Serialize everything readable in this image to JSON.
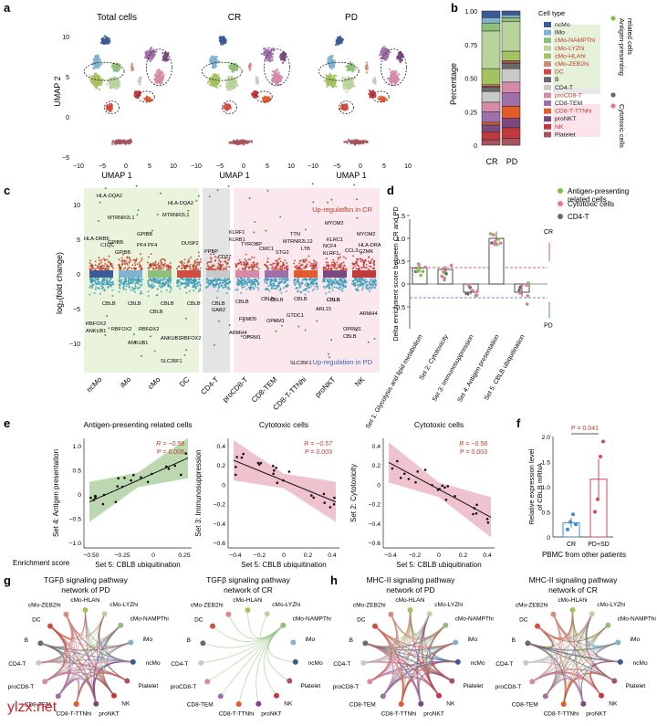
{
  "panels": {
    "a": {
      "letter": "a",
      "titles": [
        "Total cells",
        "CR",
        "PD"
      ],
      "xlabel": "UMAP 1",
      "ylabel": "UMAP 2",
      "xticks": [
        "−10",
        "−5",
        "0",
        "5",
        "10"
      ],
      "yticks": [
        "10",
        "5",
        "0",
        "−5"
      ]
    },
    "b": {
      "letter": "b",
      "ylabel": "Percentage",
      "yticks": [
        "1.00",
        "0.75",
        "0.50",
        "0.25",
        "0"
      ],
      "xcats": [
        "CR",
        "PD"
      ],
      "legend_title": "Cell type",
      "legend": [
        {
          "label": "ncMo",
          "color": "#3d5a97"
        },
        {
          "label": "iMo",
          "color": "#7fb2cf"
        },
        {
          "label": "cMo-NAMPThi",
          "color": "#8fbf7a"
        },
        {
          "label": "cMo-LYZhi",
          "color": "#b8d49c"
        },
        {
          "label": "cMo-HLAhi",
          "color": "#a4c25f"
        },
        {
          "label": "cMo-ZEB2hi",
          "color": "#d98a7e"
        },
        {
          "label": "DC",
          "color": "#cf4d42"
        },
        {
          "label": "B",
          "color": "#6a6a6a"
        },
        {
          "label": "CD4-T",
          "color": "#c9c9c9"
        },
        {
          "label": "proCD8-T",
          "color": "#d58ba7"
        },
        {
          "label": "CD8-TEM",
          "color": "#9e6fa8"
        },
        {
          "label": "CD8-T-TTNhi",
          "color": "#e25b2a"
        },
        {
          "label": "proNKT",
          "color": "#7a4a7f"
        },
        {
          "label": "NK",
          "color": "#c0393d"
        },
        {
          "label": "Platelet",
          "color": "#a8525c"
        }
      ],
      "side_labels": [
        "Antigen-presenting related cells",
        "Cytotoxic cells"
      ]
    },
    "c": {
      "letter": "c",
      "ylabel": "log₂(fold change)",
      "yticks": [
        "10",
        "5",
        "0",
        "−5",
        "−10"
      ],
      "up_label": "Up-regulation in CR",
      "down_label": "Up-regulation in PD",
      "categories": [
        "ncMo",
        "iMo",
        "cMo",
        "DC",
        "CD4-T",
        "proCD8-T",
        "CD8-TEM",
        "CD8-T-TTNhi",
        "proNKT",
        "NK"
      ],
      "genes_up": [
        "HLA-DQA2",
        "HLA-DQA2",
        "MTRNR2L1",
        "MTRNR2L1",
        "HLA-DRB5",
        "C1QC",
        "GPIBB",
        "GPIBB",
        "PF4",
        "GPIBB",
        "PF4",
        "DUSP2",
        "PPBP",
        "CD27",
        "KLRF1",
        "KLRB1",
        "TYROBP",
        "CMC1",
        "TTN",
        "MTRNR2L12",
        "STG2",
        "LTB",
        "MYOM2",
        "KLRC1",
        "NCF4",
        "KLRF1",
        "HLA-DRA",
        "GZMK",
        "CCL3",
        "MYOM2"
      ],
      "genes_down": [
        "CBLB",
        "CBLB",
        "CBLB",
        "CBLB",
        "CBLB",
        "RBFOX2",
        "ANKUB1",
        "RBFOX2",
        "ANKUB1",
        "CBLB",
        "ANKUB1",
        "RBFOX2",
        "RBFOX2",
        "SLC35F1",
        "CBLB",
        "GAB2",
        "CBLB",
        "FRMD5",
        "ARMH4",
        "OPRM1",
        "CBLB",
        "OPRM1",
        "GTDC1",
        "CBLB",
        "ARL15",
        "CBLB",
        "SLC35F1",
        "OPRM1",
        "CBLB",
        "CBLB",
        "ARMH4"
      ]
    },
    "d": {
      "letter": "d",
      "ylabel": "Delta enrichment score between CR and PD",
      "yticks": [
        "1.5",
        "1.0",
        "0.5",
        "0",
        "−0.5"
      ],
      "legend": [
        {
          "label": "Antigen-presenting related cells",
          "color": "#7cc04a"
        },
        {
          "label": "Cytotoxic cells",
          "color": "#e6769d"
        },
        {
          "label": "CD4-T",
          "color": "#6a6a6a"
        }
      ],
      "sets": [
        "Set 1: Glycolysis and lipid metabolism",
        "Set 2: Cytotoxicity",
        "Set 3: Immunosuppression",
        "Set 4: Antigen presentation",
        "Set 5: CBLB ubiquitination"
      ],
      "cr": "CR",
      "pd": "PD"
    },
    "e": {
      "letter": "e",
      "row_label": "Enrichment score",
      "plots": [
        {
          "title": "Antigen-presenting related cells",
          "ylabel": "Set 4: Antigen presentation",
          "xlabel": "Set 5: CBLB ubiquitination",
          "r": "R = −0.59",
          "p": "P = 0.006",
          "xticks": [
            "−0.50",
            "−0.25",
            "0",
            "0.25"
          ],
          "yticks": [
            "1.0",
            "0.5",
            "0",
            "−0.5",
            "−1.0"
          ]
        },
        {
          "title": "Cytotoxic cells",
          "ylabel": "Set 3: Immunosuppression",
          "xlabel": "Set 5: CBLB ubiquitination",
          "r": "R = −0.57",
          "p": "P = 0.003",
          "xticks": [
            "−0.4",
            "−0.2",
            "0",
            "0.2",
            "0.4"
          ],
          "yticks": [
            "0.4",
            "0.2",
            "0",
            "−0.2",
            "−0.4",
            "−0.6"
          ]
        },
        {
          "title": "Cytotoxic cells",
          "ylabel": "Set 2: Cytotoxicity",
          "xlabel": "Set 5: CBLB ubiquitination",
          "r": "R = −0.58",
          "p": "P = 0.003",
          "xticks": [
            "−0.4",
            "−0.2",
            "0",
            "0.2",
            "0.4"
          ],
          "yticks": [
            "0.4",
            "0.2",
            "0",
            "−0.2",
            "−0.4",
            "−0.6"
          ]
        }
      ]
    },
    "f": {
      "letter": "f",
      "ylabel": "Relative expression level of CBLB mRNA",
      "yticks": [
        "2.0",
        "1.5",
        "1.0",
        "0.5",
        "0"
      ],
      "xcats": [
        "CR",
        "PD+SD"
      ],
      "pvalue": "P = 0.041",
      "xlabel": "PBMC from other patients",
      "chart_data": {
        "type": "bar",
        "categories": [
          "CR",
          "PD+SD"
        ],
        "values": [
          0.28,
          1.15
        ],
        "ylim": [
          0,
          2.0
        ]
      }
    },
    "g": {
      "letter": "g"
    },
    "h": {
      "letter": "h"
    },
    "networks": [
      {
        "title1": "TGFβ signaling pathway",
        "title2": "network of PD",
        "dense": true
      },
      {
        "title1": "TGFβ signaling pathway",
        "title2": "network of CR",
        "dense": false
      },
      {
        "title1": "MHC-II signaling pathway",
        "title2": "network of PD",
        "dense": true
      },
      {
        "title1": "MHC-II signaling pathway",
        "title2": "network of CR",
        "dense": true
      }
    ],
    "network_nodes": [
      "cMo-HLAhi",
      "cMo-LYZhi",
      "cMo-NAMPThi",
      "iMo",
      "ncMo",
      "Platelet",
      "NK",
      "proNKT",
      "CD8-T-TTNhi",
      "CD8-TEM",
      "proCD8-T",
      "CD4-T",
      "B",
      "DC",
      "cMo-ZEB2hi"
    ]
  },
  "watermark": "ylzx.net"
}
